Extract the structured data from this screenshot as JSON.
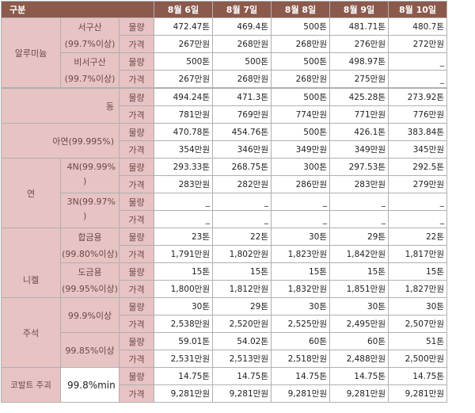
{
  "header": [
    "구분",
    "8월 6일",
    "8월 7일",
    "8월 8일",
    "8월 9일",
    "8월 10일"
  ],
  "units": {
    "qty": "물량",
    "price": "가격"
  },
  "groups": {
    "alu": {
      "label": "알루미늄",
      "a": {
        "name": "서구산",
        "spec": "(99.7%이상)",
        "qty": [
          "472.47톤",
          "469.4톤",
          "500톤",
          "481.71톤",
          "480.7톤"
        ],
        "price": [
          "267만원",
          "268만원",
          "268만원",
          "276만원",
          "272만원"
        ]
      },
      "b": {
        "name": "비서구산",
        "spec": "(99.7%이상)",
        "qty": [
          "500톤",
          "500톤",
          "500톤",
          "498.97톤",
          "_"
        ],
        "price": [
          "267만원",
          "268만원",
          "268만원",
          "275만원",
          "_"
        ]
      }
    },
    "cu": {
      "label": "동",
      "qty": [
        "494.24톤",
        "471.3톤",
        "500톤",
        "425.28톤",
        "273.92톤"
      ],
      "price": [
        "781만원",
        "769만원",
        "774만원",
        "771만원",
        "776만원"
      ]
    },
    "zn": {
      "label": "아연(99.995%)",
      "qty": [
        "470.78톤",
        "454.76톤",
        "500톤",
        "426.1톤",
        "383.84톤"
      ],
      "price": [
        "354만원",
        "346만원",
        "349만원",
        "349만원",
        "345만원"
      ]
    },
    "pb": {
      "label": "연",
      "a": {
        "name": "4N(99.99%",
        "name2": ")",
        "qty": [
          "293.33톤",
          "268.75톤",
          "300톤",
          "297.53톤",
          "292.5톤"
        ],
        "price": [
          "283만원",
          "282만원",
          "286만원",
          "283만원",
          "279만원"
        ]
      },
      "b": {
        "name": "3N(99.97%",
        "name2": ")",
        "qty": [
          "_",
          "_",
          "_",
          "_",
          "_"
        ],
        "price": [
          "_",
          "_",
          "_",
          "_",
          "_"
        ]
      }
    },
    "ni": {
      "label": "니켈",
      "a": {
        "name": "합금용",
        "spec": "(99.80%이상)",
        "qty": [
          "23톤",
          "22톤",
          "30톤",
          "29톤",
          "22톤"
        ],
        "price": [
          "1,791만원",
          "1,802만원",
          "1,823만원",
          "1,842만원",
          "1,817만원"
        ]
      },
      "b": {
        "name": "도금용",
        "spec": "(99.95%이상)",
        "qty": [
          "15톤",
          "15톤",
          "15톤",
          "15톤",
          "15톤"
        ],
        "price": [
          "1,800만원",
          "1,812만원",
          "1,832만원",
          "1,851만원",
          "1,827만원"
        ]
      }
    },
    "sn": {
      "label": "주석",
      "a": {
        "name": "99.9%이상",
        "qty": [
          "30톤",
          "29톤",
          "30톤",
          "30톤",
          "30톤"
        ],
        "price": [
          "2,538만원",
          "2,520만원",
          "2,525만원",
          "2,495만원",
          "2,507만원"
        ]
      },
      "b": {
        "name": "99.85%이상",
        "qty": [
          "59.01톤",
          "54.02톤",
          "60톤",
          "60톤",
          "51톤"
        ],
        "price": [
          "2,531만원",
          "2,513만원",
          "2,518만원",
          "2,488만원",
          "2,500만원"
        ]
      }
    },
    "co": {
      "label": "코발트 주괴",
      "spec": "99.8%min",
      "qty": [
        "14.75톤",
        "14.75톤",
        "14.75톤",
        "14.75톤",
        "14.75톤"
      ],
      "price": [
        "9,281만원",
        "9,281만원",
        "9,281만원",
        "9,281만원",
        "9,281만원"
      ]
    }
  }
}
